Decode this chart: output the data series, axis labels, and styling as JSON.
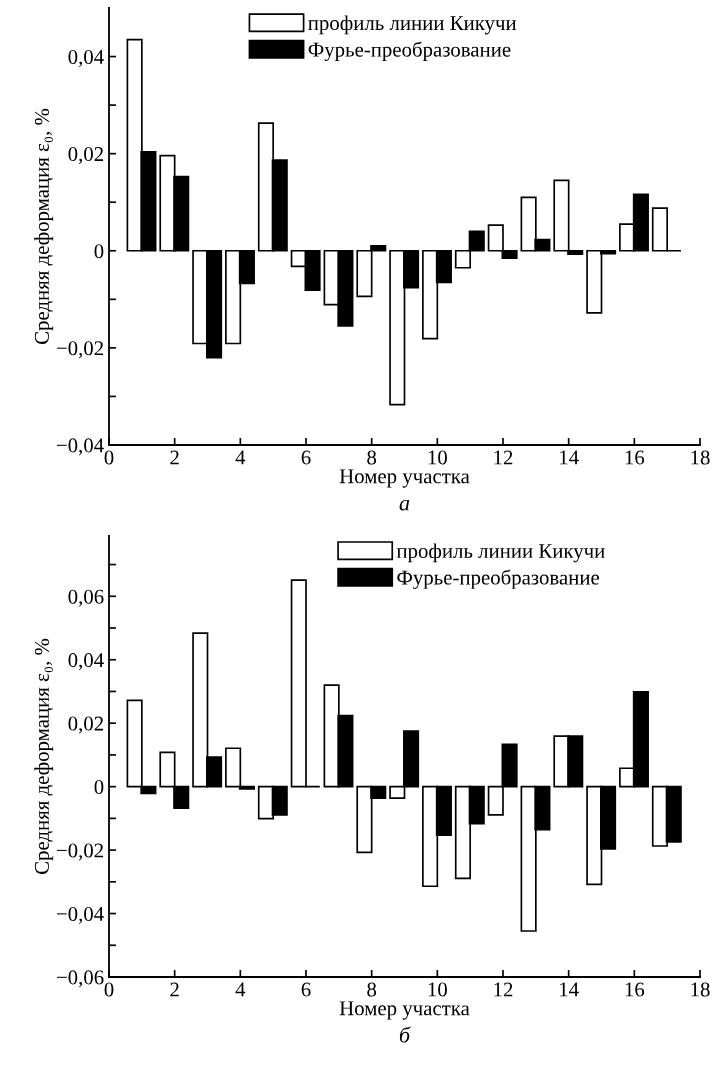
{
  "chart_data": [
    {
      "type": "bar",
      "xlabel": "Номер участка",
      "ylabel": "Средняя деформация ε₀, %",
      "annotations": [
        "а"
      ],
      "x": [
        1,
        2,
        3,
        4,
        5,
        6,
        7,
        8,
        9,
        10,
        11,
        12,
        13,
        14,
        15,
        16,
        17
      ],
      "series": [
        {
          "name": "профиль линии Кикучи",
          "color": "#ffffff",
          "values": [
            0.0435,
            0.0196,
            -0.0191,
            -0.0191,
            0.0263,
            -0.0032,
            -0.0111,
            -0.0094,
            -0.0317,
            -0.0181,
            -0.0035,
            0.0053,
            0.011,
            0.0145,
            -0.0128,
            0.0055,
            0.0088
          ]
        },
        {
          "name": "Фурье-преобразование",
          "color": "#000000",
          "values": [
            0.0204,
            0.0153,
            -0.022,
            -0.0067,
            0.0187,
            -0.0081,
            -0.0155,
            0.001,
            -0.0076,
            -0.0065,
            0.004,
            -0.0015,
            0.0023,
            -0.0007,
            -0.0006,
            0.0116,
            0
          ]
        }
      ],
      "xlim": [
        0,
        18
      ],
      "xticks": [
        0,
        2,
        4,
        6,
        8,
        10,
        12,
        14,
        16,
        18
      ],
      "ylim": [
        -0.04,
        0.05
      ],
      "yticks": [
        {
          "value": -0.04,
          "label": "−0,04"
        },
        {
          "value": -0.03,
          "label": null
        },
        {
          "value": -0.02,
          "label": "−0,02"
        },
        {
          "value": -0.01,
          "label": null
        },
        {
          "value": 0,
          "label": "0"
        },
        {
          "value": 0.01,
          "label": null
        },
        {
          "value": 0.02,
          "label": "0,02"
        },
        {
          "value": 0.03,
          "label": null
        },
        {
          "value": 0.04,
          "label": "0,04"
        }
      ],
      "legend": "top",
      "grid": false
    },
    {
      "type": "bar",
      "xlabel": "Номер участка",
      "ylabel": "Средняя деформация ε₀, %",
      "annotations": [
        "б"
      ],
      "x": [
        1,
        2,
        3,
        4,
        5,
        6,
        7,
        8,
        9,
        10,
        11,
        12,
        13,
        14,
        15,
        16,
        17
      ],
      "series": [
        {
          "name": "профиль линии Кикучи",
          "color": "#ffffff",
          "values": [
            0.0272,
            0.0108,
            0.0484,
            0.0121,
            -0.0101,
            0.0651,
            0.032,
            -0.0207,
            -0.0036,
            -0.0314,
            -0.0289,
            -0.0089,
            -0.0455,
            0.0159,
            -0.0308,
            0.0058,
            -0.0187
          ]
        },
        {
          "name": "Фурье-преобразование",
          "color": "#000000",
          "values": [
            -0.0021,
            -0.0068,
            0.0093,
            -0.0007,
            -0.0089,
            0,
            0.0224,
            -0.0036,
            0.0175,
            -0.0153,
            -0.0117,
            0.0133,
            -0.0136,
            0.0159,
            -0.0196,
            0.0299,
            -0.0174
          ]
        }
      ],
      "xlim": [
        0,
        18
      ],
      "xticks": [
        0,
        2,
        4,
        6,
        8,
        10,
        12,
        14,
        16,
        18
      ],
      "ylim": [
        -0.06,
        0.079
      ],
      "yticks": [
        {
          "value": -0.06,
          "label": "−0,06"
        },
        {
          "value": -0.05,
          "label": null
        },
        {
          "value": -0.04,
          "label": "−0,04"
        },
        {
          "value": -0.03,
          "label": null
        },
        {
          "value": -0.02,
          "label": "−0,02"
        },
        {
          "value": -0.01,
          "label": null
        },
        {
          "value": 0,
          "label": "0"
        },
        {
          "value": 0.01,
          "label": null
        },
        {
          "value": 0.02,
          "label": "0,02"
        },
        {
          "value": 0.03,
          "label": null
        },
        {
          "value": 0.04,
          "label": "0,04"
        },
        {
          "value": 0.05,
          "label": null
        },
        {
          "value": 0.06,
          "label": "0,06"
        },
        {
          "value": 0.07,
          "label": null
        }
      ],
      "legend": "top",
      "grid": false
    }
  ]
}
